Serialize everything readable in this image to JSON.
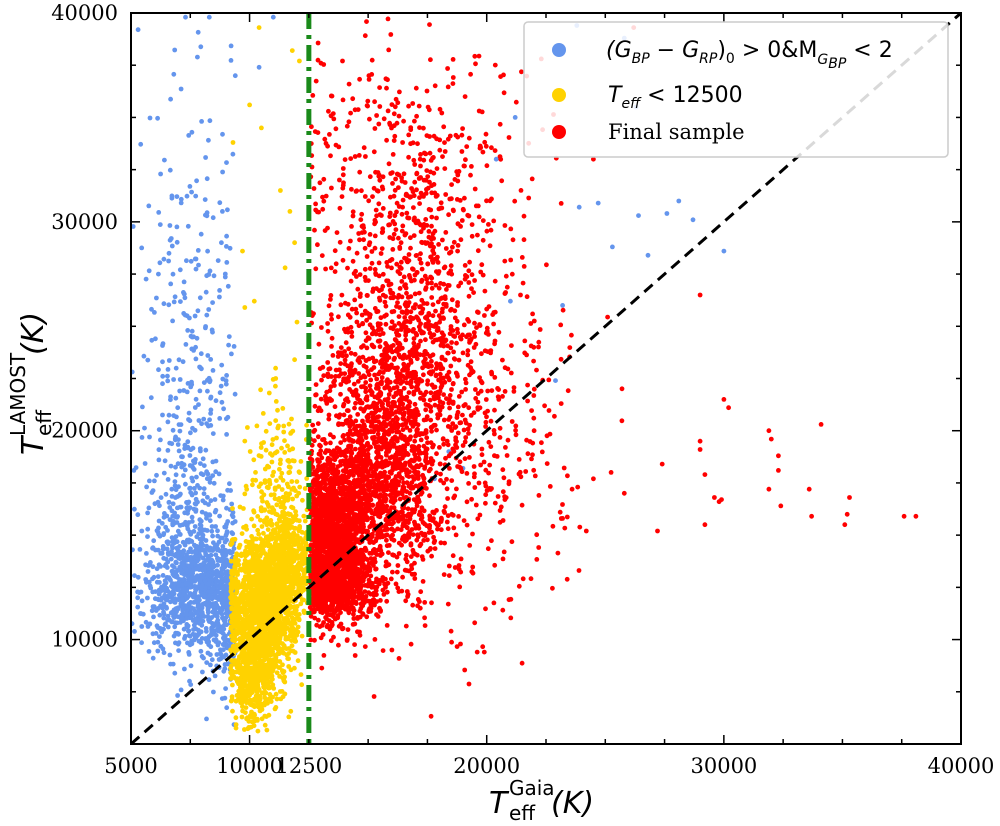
{
  "chart_data": {
    "type": "scatter",
    "xlabel": {
      "base": "T",
      "sub": "eff",
      "sup": "Gaia",
      "unit": "(K)"
    },
    "ylabel": {
      "base": "T",
      "sub": "eff",
      "sup": "LAMOST",
      "unit": "(K)"
    },
    "xlim": [
      5000,
      40000
    ],
    "ylim": [
      5000,
      40000
    ],
    "xticks": [
      5000,
      10000,
      12500,
      20000,
      30000,
      40000
    ],
    "xtick_labels": [
      "5000",
      "10000",
      "12500",
      "20000",
      "30000",
      "40000"
    ],
    "yticks": [
      10000,
      20000,
      30000,
      40000
    ],
    "ytick_labels": [
      "10000",
      "20000",
      "30000",
      "40000"
    ],
    "reference_lines": [
      {
        "name": "one-to-one",
        "type": "diagonal",
        "from": [
          5000,
          5000
        ],
        "to": [
          40000,
          40000
        ],
        "style": "dashed",
        "color": "#000000"
      },
      {
        "name": "teff-cut",
        "type": "vertical",
        "x": 12500,
        "style": "dash-dot",
        "color": "#1a8a1a"
      }
    ],
    "series": [
      {
        "name": "color-magnitude-cut",
        "legend": {
          "part1": "(G",
          "sub1": "BP",
          "part2": " − G",
          "sub2": "RP",
          "part3": ")",
          "sub3": "0",
          "part4": " > 0&M",
          "sub4": "G",
          "subsub4": "BP",
          "part5": " < 2"
        },
        "color": "#6495ed",
        "clusters": [
          {
            "cx": 7700,
            "cy": 12600,
            "sx": 1100,
            "sy": 1500,
            "n": 900
          },
          {
            "cx": 7500,
            "cy": 16500,
            "sx": 1000,
            "sy": 3200,
            "n": 260
          },
          {
            "cx": 7600,
            "cy": 24000,
            "sx": 1200,
            "sy": 6000,
            "n": 240
          },
          {
            "cx": 9000,
            "cy": 11500,
            "sx": 700,
            "sy": 2000,
            "n": 200
          }
        ],
        "points": [
          [
            5300,
            39200
          ],
          [
            7300,
            39800
          ],
          [
            8300,
            39800
          ],
          [
            11000,
            39800
          ],
          [
            9400,
            37000
          ],
          [
            10400,
            37400
          ],
          [
            23800,
            39400
          ],
          [
            25800,
            38800
          ],
          [
            26300,
            35500
          ],
          [
            21200,
            35000
          ],
          [
            20400,
            33000
          ],
          [
            27600,
            30400
          ],
          [
            28100,
            31000
          ],
          [
            28700,
            30100
          ],
          [
            26400,
            30300
          ],
          [
            24700,
            30900
          ],
          [
            23900,
            30700
          ],
          [
            25300,
            28800
          ],
          [
            26800,
            28400
          ],
          [
            30000,
            28600
          ],
          [
            21000,
            26200
          ],
          [
            22900,
            22400
          ],
          [
            18400,
            19000
          ],
          [
            19000,
            18200
          ],
          [
            17800,
            17700
          ],
          [
            23200,
            26000
          ]
        ]
      },
      {
        "name": "teff-lt-12500",
        "legend": {
          "base": "T",
          "sub": "eff",
          "rest": " < 12500"
        },
        "color": "#ffd200",
        "clusters": [
          {
            "cx": 10500,
            "cy": 11400,
            "sx": 700,
            "sy": 1700,
            "n": 1500
          },
          {
            "cx": 10200,
            "cy": 8200,
            "sx": 450,
            "sy": 1300,
            "n": 400
          },
          {
            "cx": 11200,
            "cy": 16500,
            "sx": 650,
            "sy": 2400,
            "n": 260
          },
          {
            "cx": 11500,
            "cy": 13600,
            "sx": 550,
            "sy": 1200,
            "n": 500
          }
        ],
        "points": [
          [
            9300,
            33800
          ],
          [
            10000,
            35600
          ],
          [
            10500,
            34500
          ],
          [
            11300,
            31500
          ],
          [
            11700,
            30500
          ],
          [
            11900,
            29000
          ],
          [
            11500,
            27800
          ],
          [
            10200,
            26200
          ],
          [
            12000,
            25200
          ],
          [
            9800,
            25900
          ],
          [
            11800,
            38200
          ],
          [
            12100,
            37700
          ],
          [
            10400,
            39300
          ],
          [
            9700,
            28600
          ],
          [
            11100,
            22500
          ],
          [
            11900,
            23400
          ]
        ]
      },
      {
        "name": "final-sample",
        "legend": {
          "text": "Final sample"
        },
        "color": "#ff0000",
        "clusters": [
          {
            "cx": 13600,
            "cy": 15000,
            "sx": 800,
            "sy": 1800,
            "n": 1600
          },
          {
            "cx": 15600,
            "cy": 18500,
            "sx": 1300,
            "sy": 3000,
            "n": 1300
          },
          {
            "cx": 16800,
            "cy": 25000,
            "sx": 1700,
            "sy": 3500,
            "n": 700
          },
          {
            "cx": 16500,
            "cy": 32000,
            "sx": 2600,
            "sy": 3500,
            "n": 380
          },
          {
            "cx": 18500,
            "cy": 20000,
            "sx": 2600,
            "sy": 4500,
            "n": 500
          },
          {
            "cx": 13600,
            "cy": 12500,
            "sx": 900,
            "sy": 800,
            "n": 500
          }
        ],
        "points": [
          [
            23100,
            16100
          ],
          [
            23200,
            15800
          ],
          [
            23600,
            17200
          ],
          [
            24200,
            15200
          ],
          [
            24500,
            17700
          ],
          [
            27400,
            18400
          ],
          [
            27200,
            15200
          ],
          [
            29000,
            19500
          ],
          [
            29000,
            19100
          ],
          [
            29200,
            17900
          ],
          [
            29200,
            15500
          ],
          [
            29600,
            16800
          ],
          [
            29800,
            16600
          ],
          [
            29900,
            16700
          ],
          [
            30000,
            21500
          ],
          [
            30200,
            21100
          ],
          [
            31900,
            20000
          ],
          [
            31900,
            17200
          ],
          [
            32000,
            19600
          ],
          [
            32300,
            18800
          ],
          [
            32300,
            18100
          ],
          [
            32400,
            16400
          ],
          [
            33600,
            17200
          ],
          [
            33700,
            15900
          ],
          [
            34100,
            20300
          ],
          [
            35100,
            15500
          ],
          [
            35200,
            16000
          ],
          [
            35300,
            16800
          ],
          [
            37600,
            15900
          ],
          [
            38100,
            15900
          ],
          [
            29000,
            26500
          ],
          [
            22000,
            20000
          ],
          [
            22100,
            22900
          ],
          [
            21500,
            28300
          ],
          [
            20200,
            31100
          ],
          [
            19600,
            9400
          ],
          [
            19900,
            9400
          ],
          [
            26200,
            39300
          ],
          [
            24500,
            33000
          ],
          [
            22300,
            37800
          ],
          [
            16300,
            9100
          ],
          [
            16000,
            9500
          ],
          [
            17200,
            11500
          ],
          [
            18500,
            10400
          ]
        ]
      }
    ]
  }
}
